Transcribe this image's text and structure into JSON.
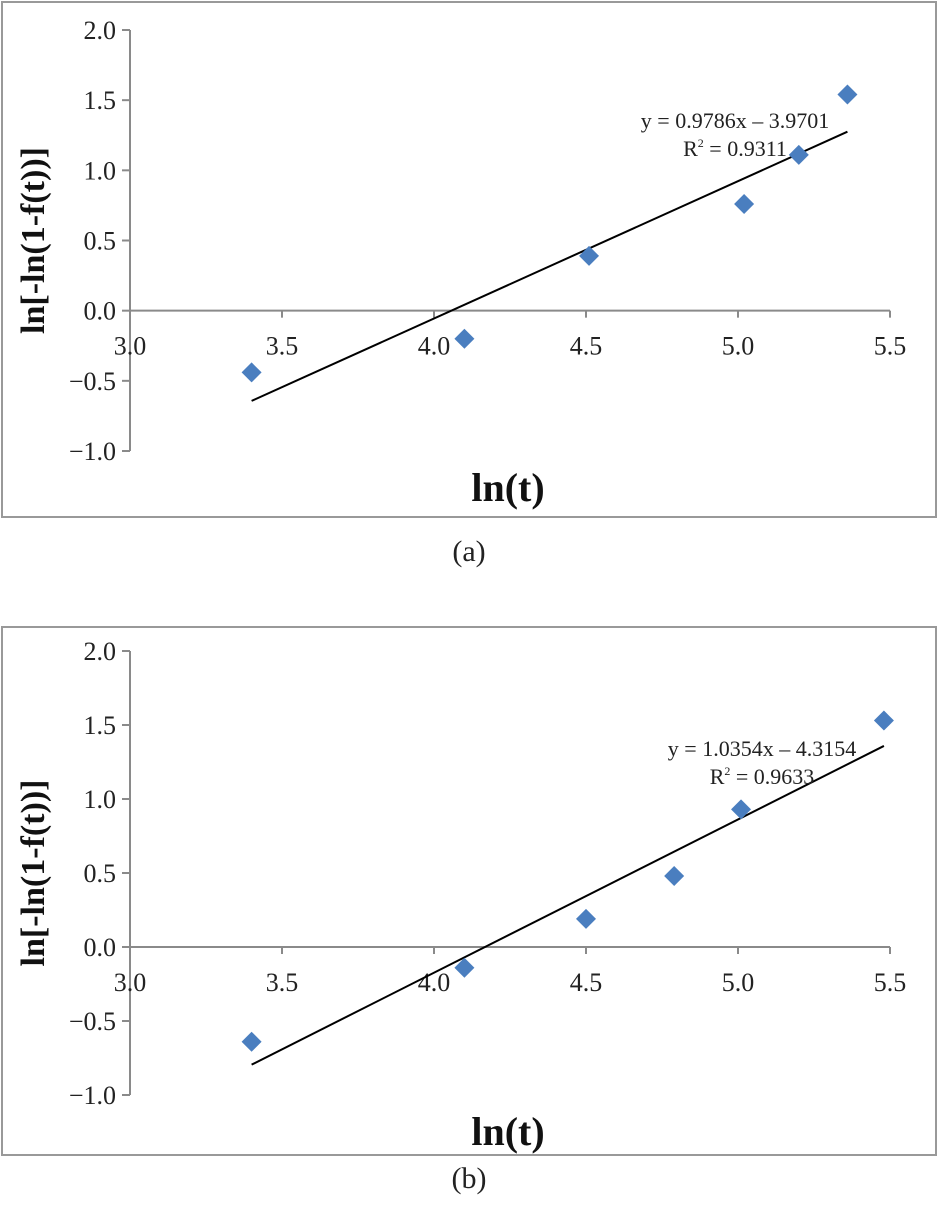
{
  "chart_data": [
    {
      "type": "scatter",
      "panel": "(a)",
      "xlabel": "ln(t)",
      "ylabel": "ln[-ln(1-f(t))]",
      "xlim": [
        3.0,
        5.5
      ],
      "ylim": [
        -1.0,
        2.0
      ],
      "xticks": [
        "3.0",
        "3.5",
        "4.0",
        "4.5",
        "5.0",
        "5.5"
      ],
      "yticks": [
        "2.0",
        "1.5",
        "1.0",
        "0.5",
        "0.0",
        "−0.5",
        "−1.0"
      ],
      "points": [
        {
          "x": 3.4,
          "y": -0.44
        },
        {
          "x": 4.1,
          "y": -0.2
        },
        {
          "x": 4.51,
          "y": 0.39
        },
        {
          "x": 5.02,
          "y": 0.76
        },
        {
          "x": 5.2,
          "y": 1.11
        },
        {
          "x": 5.36,
          "y": 1.54
        }
      ],
      "trendline": {
        "slope": 0.9786,
        "intercept": -3.9701
      },
      "equation": "y = 0.9786x – 3.9701",
      "r2_label": "R",
      "r2_value": " = 0.9311",
      "grid": false,
      "marker_color": "#4a7ebf"
    },
    {
      "type": "scatter",
      "panel": "(b)",
      "xlabel": "ln(t)",
      "ylabel": "ln[-ln(1-f(t))]",
      "xlim": [
        3.0,
        5.5
      ],
      "ylim": [
        -1.0,
        2.0
      ],
      "xticks": [
        "3.0",
        "3.5",
        "4.0",
        "4.5",
        "5.0",
        "5.5"
      ],
      "yticks": [
        "2.0",
        "1.5",
        "1.0",
        "0.5",
        "0.0",
        "−0.5",
        "−1.0"
      ],
      "points": [
        {
          "x": 3.4,
          "y": -0.64
        },
        {
          "x": 4.1,
          "y": -0.14
        },
        {
          "x": 4.5,
          "y": 0.19
        },
        {
          "x": 4.79,
          "y": 0.48
        },
        {
          "x": 5.01,
          "y": 0.93
        },
        {
          "x": 5.48,
          "y": 1.53
        }
      ],
      "trendline": {
        "slope": 1.0354,
        "intercept": -4.3154
      },
      "equation": "y = 1.0354x – 4.3154",
      "r2_label": "R",
      "r2_value": " = 0.9633",
      "grid": false,
      "marker_color": "#4a7ebf"
    }
  ]
}
